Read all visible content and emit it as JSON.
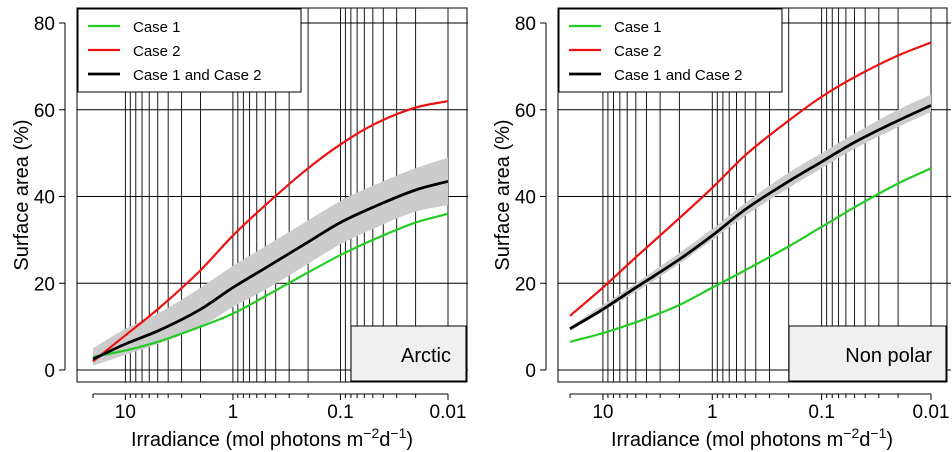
{
  "chart_data": [
    {
      "type": "line",
      "panel_label": "Arctic",
      "xlabel": {
        "main": "Irradiance (mol photons m",
        "sup1": "−2",
        "mid": "d",
        "sup2": "−1",
        "end": ")"
      },
      "ylabel": "Surface area (%)",
      "x_scale": "log-reversed",
      "xlim": [
        20,
        0.01
      ],
      "ylim": [
        0,
        80
      ],
      "x_ticks": [
        {
          "value": 10,
          "label": "10"
        },
        {
          "value": 1,
          "label": "1"
        },
        {
          "value": 0.1,
          "label": "0.1"
        },
        {
          "value": 0.01,
          "label": "0.01"
        }
      ],
      "y_ticks": [
        {
          "value": 0,
          "label": "0"
        },
        {
          "value": 20,
          "label": "20"
        },
        {
          "value": 40,
          "label": "40"
        },
        {
          "value": 60,
          "label": "60"
        },
        {
          "value": 80,
          "label": "80"
        }
      ],
      "grid": true,
      "legend_position": "top-left",
      "series": [
        {
          "name": "Case 1",
          "color": "#22cc22",
          "x": [
            20,
            10,
            5,
            2,
            1,
            0.5,
            0.2,
            0.1,
            0.05,
            0.02,
            0.01
          ],
          "y": [
            3,
            4.5,
            6.5,
            10,
            13,
            17,
            22.5,
            26.5,
            30,
            34,
            36
          ]
        },
        {
          "name": "Case 2",
          "color": "#ee1111",
          "x": [
            20,
            10,
            5,
            2,
            1,
            0.5,
            0.2,
            0.1,
            0.05,
            0.02,
            0.01
          ],
          "y": [
            2,
            8,
            14,
            23,
            31,
            38,
            46.5,
            52,
            56.5,
            60.5,
            62
          ]
        },
        {
          "name": "Case 1 and Case 2",
          "color": "#000000",
          "x": [
            20,
            10,
            5,
            2,
            1,
            0.5,
            0.2,
            0.1,
            0.05,
            0.02,
            0.01
          ],
          "y": [
            2.5,
            6,
            9,
            14,
            19,
            23.5,
            29.5,
            34,
            37.5,
            41.5,
            43.5
          ]
        }
      ],
      "band": {
        "color": "#cccccc",
        "x": [
          20,
          10,
          5,
          2,
          1,
          0.5,
          0.2,
          0.1,
          0.05,
          0.02,
          0.01
        ],
        "lower": [
          1,
          3.5,
          6,
          10,
          14.5,
          18.5,
          24.5,
          29,
          32.5,
          36.5,
          38
        ],
        "upper": [
          5,
          9.5,
          13,
          19,
          24,
          28.5,
          34.5,
          39,
          42.5,
          46.5,
          49
        ]
      }
    },
    {
      "type": "line",
      "panel_label": "Non polar",
      "xlabel": {
        "main": "Irradiance (mol photons m",
        "sup1": "−2",
        "mid": "d",
        "sup2": "−1",
        "end": ")"
      },
      "ylabel": "Surface area (%)",
      "x_scale": "log-reversed",
      "xlim": [
        20,
        0.01
      ],
      "ylim": [
        0,
        80
      ],
      "x_ticks": [
        {
          "value": 10,
          "label": "10"
        },
        {
          "value": 1,
          "label": "1"
        },
        {
          "value": 0.1,
          "label": "0.1"
        },
        {
          "value": 0.01,
          "label": "0.01"
        }
      ],
      "y_ticks": [
        {
          "value": 0,
          "label": "0"
        },
        {
          "value": 20,
          "label": "20"
        },
        {
          "value": 40,
          "label": "40"
        },
        {
          "value": 60,
          "label": "60"
        },
        {
          "value": 80,
          "label": "80"
        }
      ],
      "grid": true,
      "legend_position": "top-left",
      "series": [
        {
          "name": "Case 1",
          "color": "#22cc22",
          "x": [
            20,
            10,
            5,
            2,
            1,
            0.5,
            0.2,
            0.1,
            0.05,
            0.02,
            0.01
          ],
          "y": [
            6.5,
            8.5,
            11,
            15,
            19,
            23,
            28.5,
            33,
            37.5,
            43,
            46.5
          ]
        },
        {
          "name": "Case 2",
          "color": "#ee1111",
          "x": [
            20,
            10,
            5,
            2,
            1,
            0.5,
            0.2,
            0.1,
            0.05,
            0.02,
            0.01
          ],
          "y": [
            12.5,
            19,
            26,
            35,
            42,
            49.5,
            57.5,
            63,
            67.5,
            72.5,
            75.5
          ]
        },
        {
          "name": "Case 1 and Case 2",
          "color": "#000000",
          "x": [
            20,
            10,
            5,
            2,
            1,
            0.5,
            0.2,
            0.1,
            0.05,
            0.02,
            0.01
          ],
          "y": [
            9.5,
            14,
            19,
            25.5,
            31,
            37,
            43.5,
            48,
            52.5,
            57.5,
            61
          ]
        }
      ],
      "band": {
        "color": "#cccccc",
        "x": [
          20,
          10,
          5,
          2,
          1,
          0.5,
          0.2,
          0.1,
          0.05,
          0.02,
          0.01
        ],
        "lower": [
          9,
          13.5,
          18,
          24.5,
          30,
          35.5,
          42,
          46.5,
          51,
          56,
          59.5
        ],
        "upper": [
          10,
          15,
          20,
          27,
          32.5,
          38.5,
          45.5,
          50,
          54.5,
          60,
          63.5
        ]
      }
    }
  ]
}
